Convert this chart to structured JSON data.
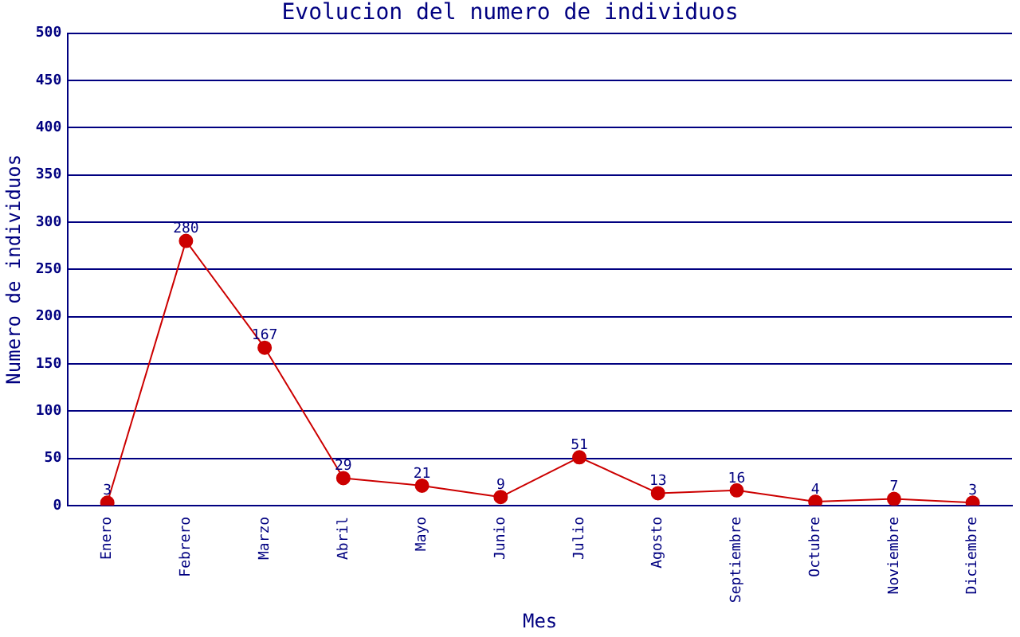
{
  "chart_data": {
    "type": "line",
    "title": "Evolucion del numero de individuos",
    "xlabel": "Mes",
    "ylabel": "Numero de individuos",
    "categories": [
      "Enero",
      "Febrero",
      "Marzo",
      "Abril",
      "Mayo",
      "Junio",
      "Julio",
      "Agosto",
      "Septiembre",
      "Octubre",
      "Noviembre",
      "Diciembre"
    ],
    "series": [
      {
        "color": "#cc0000",
        "values": [
          3,
          280,
          167,
          29,
          21,
          9,
          51,
          13,
          16,
          4,
          7,
          3
        ]
      }
    ],
    "ylim": [
      0,
      500
    ],
    "yticks": [
      0,
      50,
      100,
      150,
      200,
      250,
      300,
      350,
      400,
      450,
      500
    ],
    "grid": "y",
    "marker": "circle",
    "data_labels": true
  }
}
